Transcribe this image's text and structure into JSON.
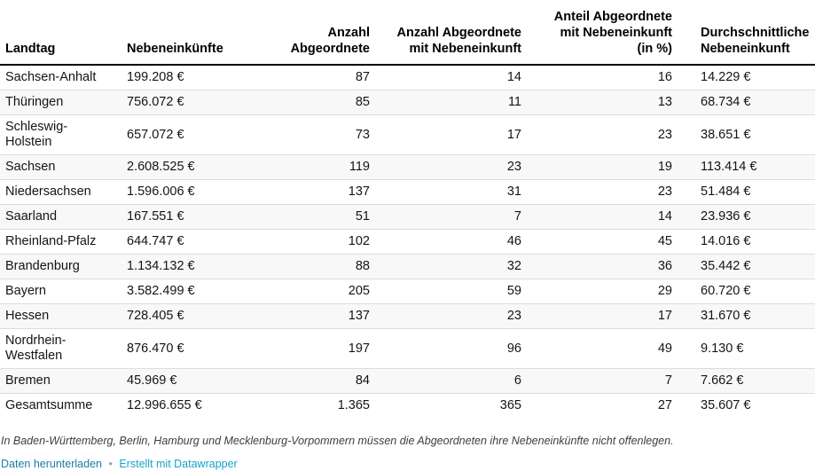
{
  "chart_data": {
    "type": "table",
    "columns": [
      {
        "id": "landtag",
        "label": "Landtag",
        "display": "Landtag",
        "align": "left"
      },
      {
        "id": "nebeneinkuenfte",
        "label": "Nebeneinkünfte",
        "display": "Nebeneinkünfte",
        "align": "left"
      },
      {
        "id": "anzahl-abgeordnete",
        "label": "Anzahl Abgeordnete",
        "display": "Anzahl\nAbgeordnete",
        "align": "right"
      },
      {
        "id": "anzahl-abgeordnete-mit-nebeneinkunft",
        "label": "Anzahl Abgeordnete mit Nebeneinkunft",
        "display": "Anzahl Abgeordnete\nmit Nebeneinkunft",
        "align": "right"
      },
      {
        "id": "anteil-abgeordnete-mit-nebeneinkunft",
        "label": "Anteil Abgeordnete mit Nebeneinkunft (in %)",
        "display": "Anteil Abgeordnete\nmit Nebeneinkunft\n(in %)",
        "align": "right"
      },
      {
        "id": "durchschnittliche-nebeneinkunft",
        "label": "Durchschnittliche Nebeneinkunft",
        "display": "Durchschnittliche\nNebeneinkunft",
        "align": "left"
      }
    ],
    "rows": [
      [
        "Sachsen-Anhalt",
        "199.208 €",
        "87",
        "14",
        "16",
        "14.229 €"
      ],
      [
        "Thüringen",
        "756.072 €",
        "85",
        "11",
        "13",
        "68.734 €"
      ],
      [
        "Schleswig-Holstein",
        "657.072 €",
        "73",
        "17",
        "23",
        "38.651 €"
      ],
      [
        "Sachsen",
        "2.608.525 €",
        "119",
        "23",
        "19",
        "113.414 €"
      ],
      [
        "Niedersachsen",
        "1.596.006 €",
        "137",
        "31",
        "23",
        "51.484 €"
      ],
      [
        "Saarland",
        "167.551 €",
        "51",
        "7",
        "14",
        "23.936 €"
      ],
      [
        "Rheinland-Pfalz",
        "644.747 €",
        "102",
        "46",
        "45",
        "14.016 €"
      ],
      [
        "Brandenburg",
        "1.134.132 €",
        "88",
        "32",
        "36",
        "35.442 €"
      ],
      [
        "Bayern",
        "3.582.499 €",
        "205",
        "59",
        "29",
        "60.720 €"
      ],
      [
        "Hessen",
        "728.405 €",
        "137",
        "23",
        "17",
        "31.670 €"
      ],
      [
        "Nordrhein-Westfalen",
        "876.470 €",
        "197",
        "96",
        "49",
        "9.130 €"
      ],
      [
        "Bremen",
        "45.969 €",
        "84",
        "6",
        "7",
        "7.662 €"
      ],
      [
        "Gesamtsumme",
        "12.996.655 €",
        "1.365",
        "365",
        "27",
        "35.607 €"
      ]
    ]
  },
  "footer": {
    "note": "In Baden-Württemberg, Berlin, Hamburg und Mecklenburg-Vorpommern müssen die Abgeordneten ihre Nebeneinkünfte nicht offenlegen.",
    "download_link": "Daten herunterladen",
    "separator": "•",
    "attribution_link": "Erstellt mit Datawrapper"
  },
  "colors": {
    "link_download": "#1d7ba3",
    "link_attribution": "#18a1cd",
    "stripe": "#f8f8f8",
    "row_border": "#dcdcdc",
    "header_border": "#000000",
    "text": "#141414",
    "note_text": "#3d3d3d"
  }
}
